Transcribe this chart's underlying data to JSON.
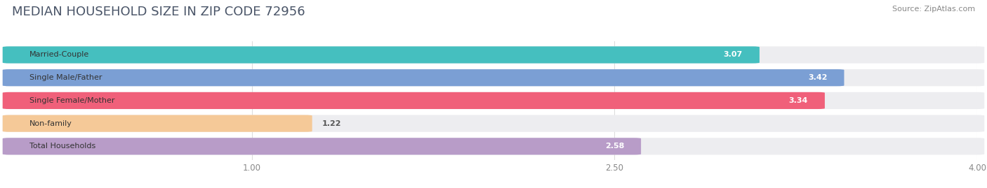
{
  "title": "MEDIAN HOUSEHOLD SIZE IN ZIP CODE 72956",
  "source": "Source: ZipAtlas.com",
  "categories": [
    "Married-Couple",
    "Single Male/Father",
    "Single Female/Mother",
    "Non-family",
    "Total Households"
  ],
  "values": [
    3.07,
    3.42,
    3.34,
    1.22,
    2.58
  ],
  "bar_colors": [
    "#45BFBF",
    "#7B9FD4",
    "#F0607A",
    "#F5C998",
    "#B89CC8"
  ],
  "xlim": [
    0,
    4.0
  ],
  "xticks": [
    1.0,
    2.5,
    4.0
  ],
  "background_color": "#FFFFFF",
  "bar_bg_color": "#EDEDF0",
  "title_fontsize": 13,
  "title_color": "#4A5568",
  "source_fontsize": 8,
  "source_color": "#888888",
  "label_fontsize": 8,
  "value_fontsize": 8
}
